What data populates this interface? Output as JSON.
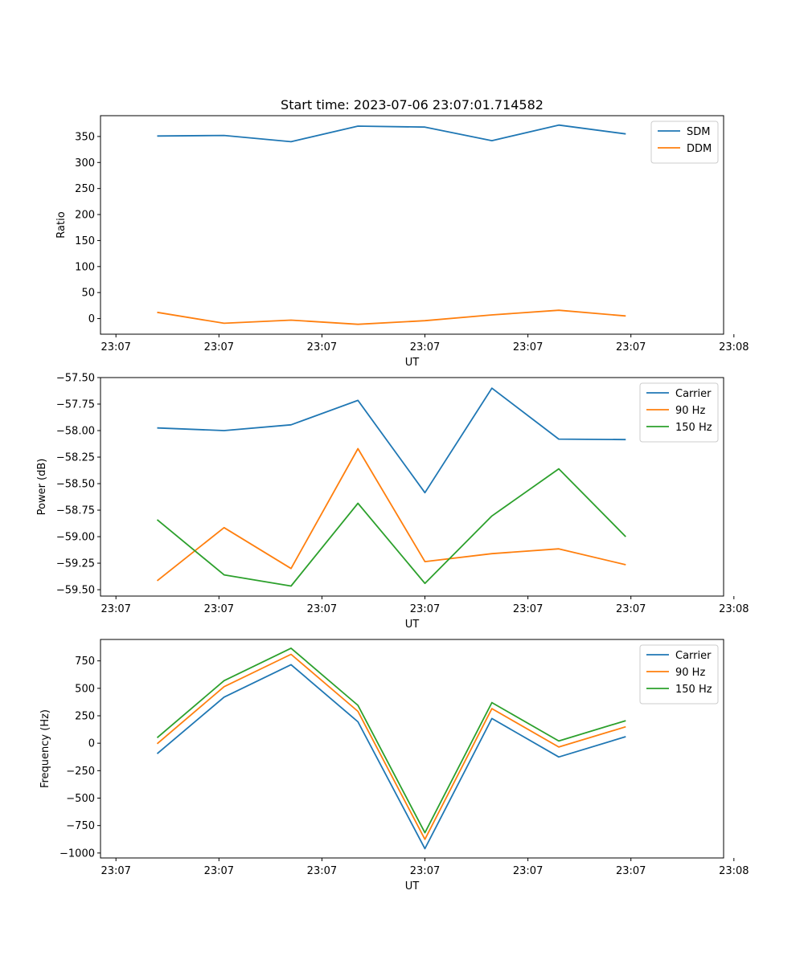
{
  "chart_data": [
    {
      "type": "line",
      "title": "Start time: 2023-07-06 23:07:01.714582",
      "xlabel": "UT",
      "ylabel": "Ratio",
      "x": [
        0.4,
        1.05,
        1.7,
        2.35,
        3.0,
        3.65,
        4.3,
        4.95
      ],
      "xlim": [
        -0.15,
        5.9
      ],
      "xticks": [
        0,
        1,
        2,
        3,
        4,
        5,
        6
      ],
      "xtick_labels": [
        "23:07",
        "23:07",
        "23:07",
        "23:07",
        "23:07",
        "23:07",
        "23:08"
      ],
      "ylim": [
        -30,
        390
      ],
      "yticks": [
        0,
        50,
        100,
        150,
        200,
        250,
        300,
        350
      ],
      "ytick_labels": [
        "0",
        "50",
        "100",
        "150",
        "200",
        "250",
        "300",
        "350"
      ],
      "legend": "top-right",
      "series": [
        {
          "name": "SDM",
          "color": "#1f77b4",
          "values": [
            351,
            352,
            340,
            370,
            368,
            342,
            372,
            355
          ]
        },
        {
          "name": "DDM",
          "color": "#ff7f0e",
          "values": [
            12,
            -9,
            -3,
            -11,
            -4,
            7,
            16,
            5
          ]
        }
      ]
    },
    {
      "type": "line",
      "title": "",
      "xlabel": "UT",
      "ylabel": "Power (dB)",
      "x": [
        0.4,
        1.05,
        1.7,
        2.35,
        3.0,
        3.65,
        4.3,
        4.95
      ],
      "xlim": [
        -0.15,
        5.9
      ],
      "xticks": [
        0,
        1,
        2,
        3,
        4,
        5,
        6
      ],
      "xtick_labels": [
        "23:07",
        "23:07",
        "23:07",
        "23:07",
        "23:07",
        "23:07",
        "23:08"
      ],
      "ylim": [
        -59.56,
        -57.5
      ],
      "yticks": [
        -59.5,
        -59.25,
        -59.0,
        -58.75,
        -58.5,
        -58.25,
        -58.0,
        -57.75,
        -57.5
      ],
      "ytick_labels": [
        "−59.50",
        "−59.25",
        "−59.00",
        "−58.75",
        "−58.50",
        "−58.25",
        "−58.00",
        "−57.75",
        "−57.50"
      ],
      "legend": "top-right",
      "series": [
        {
          "name": "Carrier",
          "color": "#1f77b4",
          "values": [
            -57.975,
            -58.0,
            -57.945,
            -57.715,
            -58.585,
            -57.6,
            -58.08,
            -58.085
          ]
        },
        {
          "name": "90 Hz",
          "color": "#ff7f0e",
          "values": [
            -59.415,
            -58.915,
            -59.3,
            -58.17,
            -59.235,
            -59.16,
            -59.115,
            -59.265
          ]
        },
        {
          "name": "150 Hz",
          "color": "#2ca02c",
          "values": [
            -58.84,
            -59.36,
            -59.465,
            -58.685,
            -59.44,
            -58.805,
            -58.36,
            -59.0
          ]
        }
      ]
    },
    {
      "type": "line",
      "title": "",
      "xlabel": "UT",
      "ylabel": "Frequency (Hz)",
      "x": [
        0.4,
        1.05,
        1.7,
        2.35,
        3.0,
        3.65,
        4.3,
        4.95
      ],
      "xlim": [
        -0.15,
        5.9
      ],
      "xticks": [
        0,
        1,
        2,
        3,
        4,
        5,
        6
      ],
      "xtick_labels": [
        "23:07",
        "23:07",
        "23:07",
        "23:07",
        "23:07",
        "23:07",
        "23:08"
      ],
      "ylim": [
        -1045,
        945
      ],
      "yticks": [
        -1000,
        -750,
        -500,
        -250,
        0,
        250,
        500,
        750
      ],
      "ytick_labels": [
        "−1000",
        "−750",
        "−500",
        "−250",
        "0",
        "250",
        "500",
        "750"
      ],
      "legend": "top-right",
      "series": [
        {
          "name": "Carrier",
          "color": "#1f77b4",
          "values": [
            -95,
            420,
            715,
            195,
            -960,
            225,
            -125,
            60
          ]
        },
        {
          "name": "90 Hz",
          "color": "#ff7f0e",
          "values": [
            -5,
            515,
            810,
            290,
            -875,
            315,
            -35,
            150
          ]
        },
        {
          "name": "150 Hz",
          "color": "#2ca02c",
          "values": [
            50,
            570,
            865,
            345,
            -815,
            370,
            20,
            205
          ]
        }
      ]
    }
  ]
}
